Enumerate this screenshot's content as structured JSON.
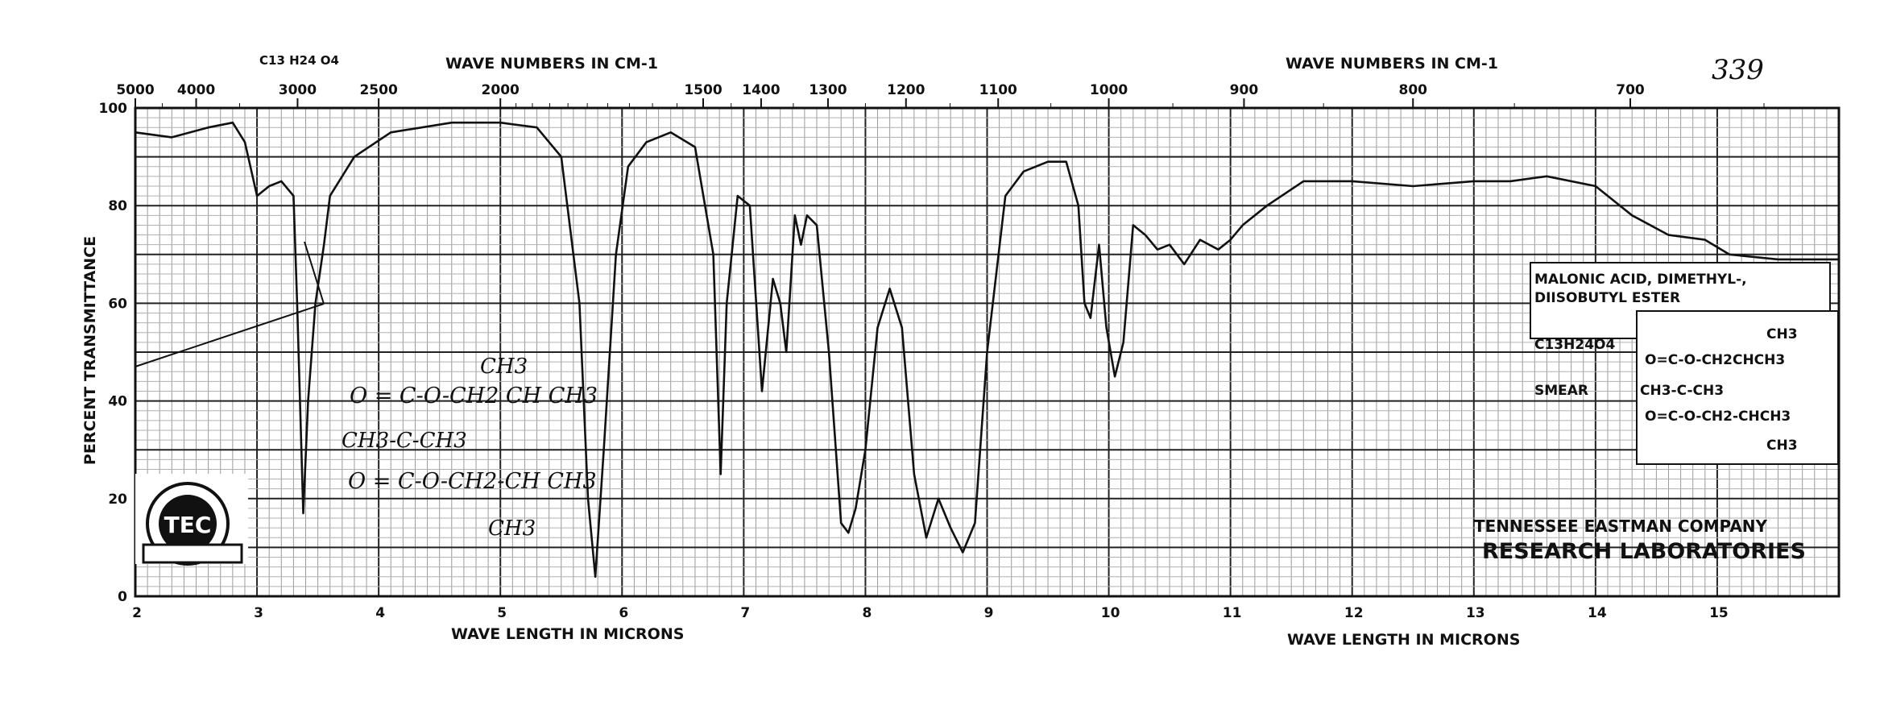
{
  "page_number": "339",
  "formula_top": "C13 H24 O4",
  "chart_data": {
    "type": "line",
    "title": "",
    "xlabel": "WAVE LENGTH IN MICRONS",
    "ylabel": "PERCENT TRANSMITTANCE",
    "top_axis_label": "WAVE NUMBERS IN CM-1",
    "xlim": [
      2,
      16
    ],
    "ylim": [
      0,
      100
    ],
    "grid": true,
    "x_ticks": [
      2,
      3,
      4,
      5,
      6,
      7,
      8,
      9,
      10,
      11,
      12,
      13,
      14,
      15
    ],
    "x_tick_labels": [
      "2",
      "3",
      "4",
      "5",
      "6",
      "7",
      "8",
      "9",
      "10",
      "11",
      "12",
      "13",
      "14",
      "15"
    ],
    "y_ticks": [
      0,
      20,
      40,
      60,
      80,
      100
    ],
    "y_tick_labels": [
      "0",
      "20",
      "40",
      "60",
      "80",
      "100"
    ],
    "top_ticks": [
      5000,
      4000,
      3000,
      2500,
      2000,
      1500,
      1400,
      1300,
      1200,
      1100,
      1000,
      900,
      800,
      700
    ],
    "top_tick_labels": [
      "5000",
      "4000",
      "3000",
      "2500",
      "2000",
      "1500",
      "1400",
      "1300",
      "1200",
      "1100",
      "1000",
      "900",
      "800",
      "700"
    ],
    "series": [
      {
        "name": "",
        "x": [
          2.0,
          2.3,
          2.6,
          2.8,
          2.9,
          3.0,
          3.1,
          3.2,
          3.3,
          3.33,
          3.38,
          3.42,
          3.48,
          3.55,
          3.6,
          3.8,
          4.1,
          4.6,
          5.0,
          5.3,
          5.5,
          5.65,
          5.72,
          5.78,
          5.85,
          5.95,
          6.05,
          6.2,
          6.4,
          6.6,
          6.75,
          6.81,
          6.86,
          6.95,
          7.05,
          7.15,
          7.24,
          7.3,
          7.35,
          7.38,
          7.42,
          7.47,
          7.52,
          7.6,
          7.7,
          7.8,
          7.86,
          7.92,
          8.0,
          8.1,
          8.2,
          8.3,
          8.4,
          8.5,
          8.6,
          8.7,
          8.8,
          8.9,
          9.0,
          9.15,
          9.3,
          9.5,
          9.65,
          9.75,
          9.8,
          9.85,
          9.92,
          9.98,
          10.05,
          10.12,
          10.2,
          10.3,
          10.4,
          10.5,
          10.62,
          10.75,
          10.9,
          11.0,
          11.1,
          11.3,
          11.6,
          12.0,
          12.5,
          13.0,
          13.3,
          13.6,
          14.0,
          14.3,
          14.6,
          14.9,
          15.1,
          15.5,
          16.0
        ],
        "y": [
          95,
          94,
          96,
          97,
          93,
          82,
          84,
          85,
          82,
          60,
          17,
          40,
          60,
          72,
          82,
          90,
          95,
          97,
          97,
          96,
          90,
          60,
          20,
          4,
          30,
          70,
          88,
          93,
          95,
          92,
          70,
          25,
          60,
          82,
          80,
          42,
          65,
          60,
          50,
          62,
          78,
          72,
          78,
          76,
          50,
          15,
          13,
          18,
          30,
          55,
          63,
          55,
          25,
          12,
          20,
          14,
          9,
          15,
          50,
          82,
          87,
          89,
          89,
          80,
          60,
          57,
          72,
          55,
          45,
          52,
          76,
          74,
          71,
          72,
          68,
          73,
          71,
          73,
          76,
          80,
          85,
          85,
          84,
          85,
          85,
          86,
          84,
          78,
          74,
          73,
          70,
          69,
          69
        ]
      }
    ]
  },
  "compound_box": {
    "name_line1": "MALONIC ACID, DIMETHYL-,",
    "name_line2": "DIISOBUTYL ESTER",
    "formula": "C13H24O4",
    "phase": "SMEAR",
    "structure_lines": [
      "CH3",
      "O=C-O-CH2CHCH3",
      "CH3-C-CH3",
      "O=C-O-CH2-CHCH3",
      "CH3"
    ]
  },
  "handwritten_structure": [
    "CH3",
    "O = C-O-CH2 CH CH3",
    "CH3-C-CH3",
    "O = C-O-CH2-CH CH3",
    "CH3"
  ],
  "company": {
    "line1": "TENNESSEE EASTMAN COMPANY",
    "line2": "RESEARCH LABORATORIES",
    "logo_text": "TEC"
  }
}
